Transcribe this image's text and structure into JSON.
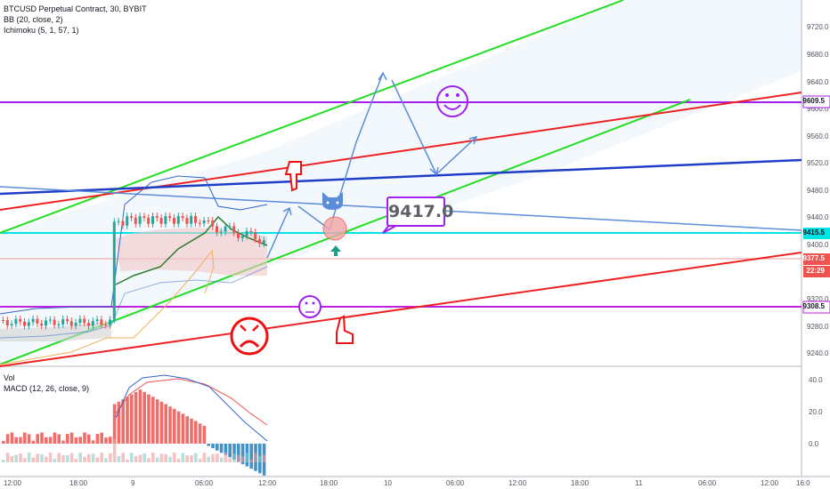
{
  "legend": {
    "symbol": "BTCUSD Perpetual Contract, 30, BYBIT",
    "bb": "BB (20, close, 2)",
    "ichimoku": "Ichimoku (5, 1, 57, 1)"
  },
  "sub_legend": {
    "vol": "Vol",
    "macd": "MACD (12, 26, close, 9)"
  },
  "price_axis": [
    "9720.0",
    "9680.0",
    "9640.0",
    "9600.0",
    "9560.0",
    "9520.0",
    "9480.0",
    "9440.0",
    "9400.0",
    "9360.0",
    "9320.0",
    "9280.0",
    "9240.0"
  ],
  "macd_axis": [
    "40.0",
    "20.0",
    "0.0"
  ],
  "time_axis": [
    "12:00",
    "18:00",
    "9",
    "06:00",
    "12:00",
    "18:00",
    "10",
    "06:00",
    "12:00",
    "18:00",
    "11",
    "06:00",
    "12:00",
    "16:0"
  ],
  "price_tags": {
    "top": "9609.5",
    "cyan": "9415.5",
    "current": "9377.5",
    "countdown": "22:29",
    "bottom": "9308.5"
  },
  "callout": "9417.0",
  "colors": {
    "purple_line": "#a020f0",
    "cyan_line": "#00e5e5",
    "green_channel": "#22dd22",
    "red_channel": "#ee2222",
    "blue_line": "#1f3ec7",
    "light_blue_line": "#5b8dd9",
    "candle_up": "#26a69a",
    "candle_down": "#ef5350",
    "current_tag": "#ef5350"
  },
  "icons": [
    "smile-emoji-icon",
    "neutral-emoji-icon",
    "sad-emoji-icon",
    "cat-face-icon",
    "pointing-hand-down-icon",
    "pointing-hand-up-icon",
    "arrow-up-icon"
  ]
}
